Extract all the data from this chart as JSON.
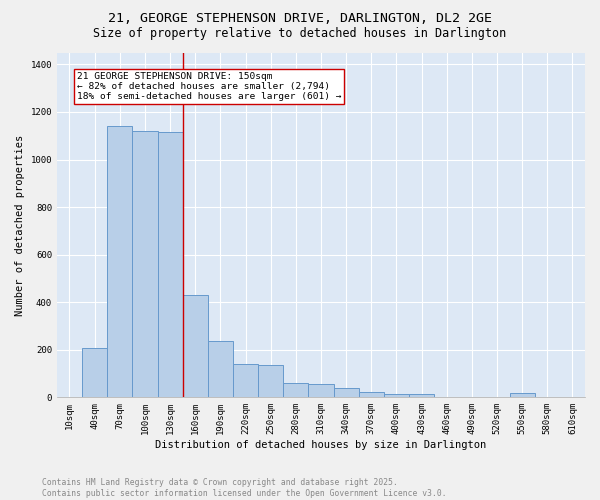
{
  "title_line1": "21, GEORGE STEPHENSON DRIVE, DARLINGTON, DL2 2GE",
  "title_line2": "Size of property relative to detached houses in Darlington",
  "xlabel": "Distribution of detached houses by size in Darlington",
  "ylabel": "Number of detached properties",
  "bar_color": "#b8cfe8",
  "bar_edge_color": "#6699cc",
  "background_color": "#dde8f5",
  "grid_color": "#ffffff",
  "categories": [
    "10sqm",
    "40sqm",
    "70sqm",
    "100sqm",
    "130sqm",
    "160sqm",
    "190sqm",
    "220sqm",
    "250sqm",
    "280sqm",
    "310sqm",
    "340sqm",
    "370sqm",
    "400sqm",
    "430sqm",
    "460sqm",
    "490sqm",
    "520sqm",
    "550sqm",
    "580sqm",
    "610sqm"
  ],
  "values": [
    0,
    207,
    1140,
    1120,
    1115,
    430,
    235,
    140,
    135,
    60,
    57,
    40,
    22,
    15,
    14,
    0,
    0,
    0,
    17,
    0,
    0
  ],
  "vline_x": 4.5,
  "vline_color": "#cc0000",
  "annotation_text": "21 GEORGE STEPHENSON DRIVE: 150sqm\n← 82% of detached houses are smaller (2,794)\n18% of semi-detached houses are larger (601) →",
  "ylim": [
    0,
    1450
  ],
  "yticks": [
    0,
    200,
    400,
    600,
    800,
    1000,
    1200,
    1400
  ],
  "footer_text": "Contains HM Land Registry data © Crown copyright and database right 2025.\nContains public sector information licensed under the Open Government Licence v3.0.",
  "title_fontsize": 9.5,
  "subtitle_fontsize": 8.5,
  "axis_label_fontsize": 7.5,
  "tick_fontsize": 6.5,
  "annotation_fontsize": 6.8,
  "footer_fontsize": 5.8
}
